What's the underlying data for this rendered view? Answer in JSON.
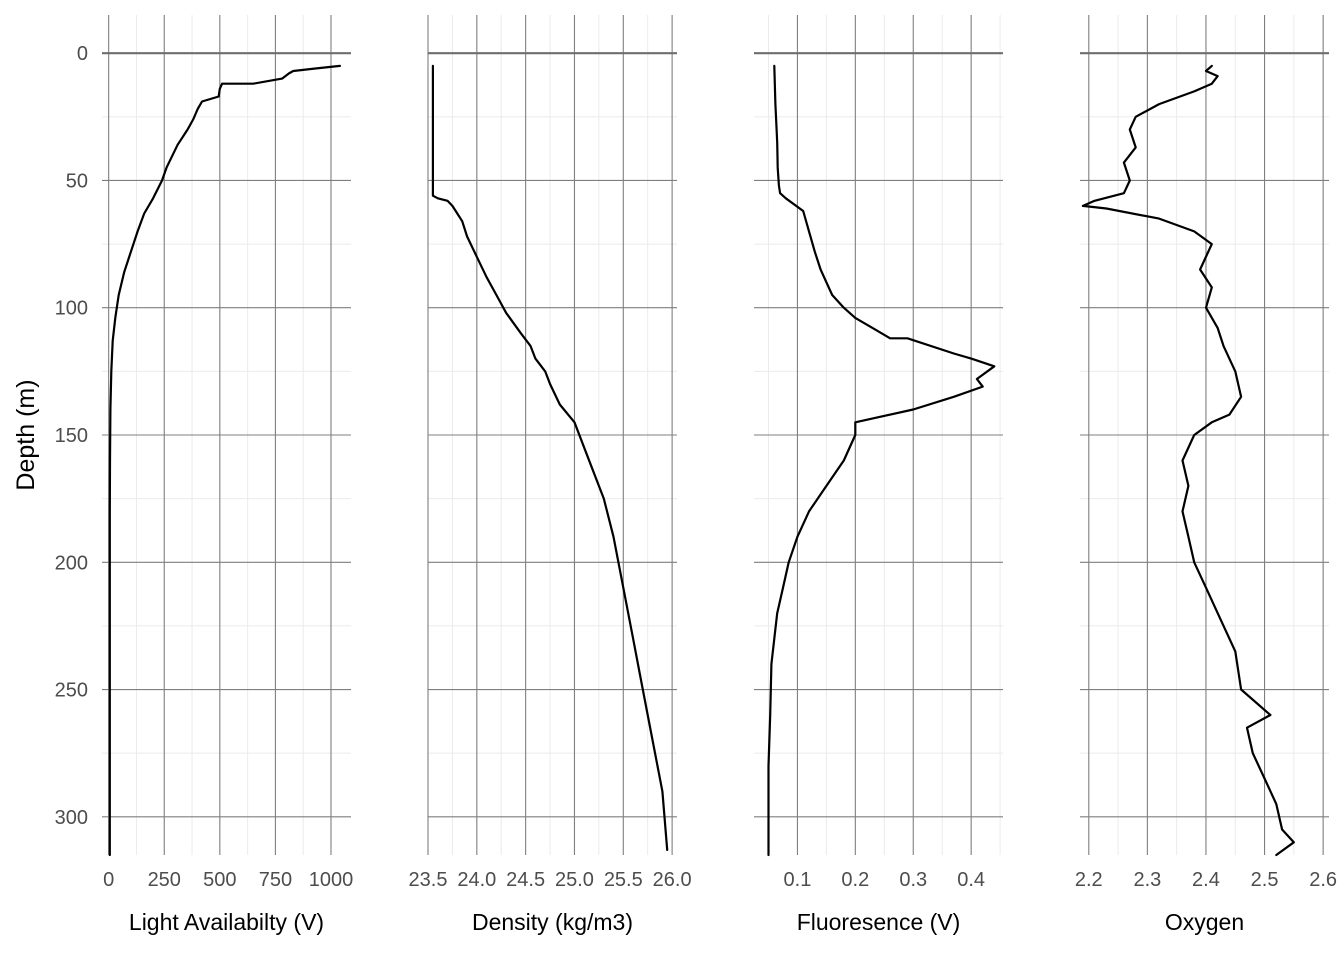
{
  "chart_data": {
    "type": "line",
    "layout": "four vertical profile panels sharing the depth axis",
    "shared_y": {
      "label": "Depth (m)",
      "ticks": [
        0,
        50,
        100,
        150,
        200,
        250,
        300
      ],
      "range": [
        -15,
        315
      ],
      "direction": "increasing downward",
      "reference_line": 0
    },
    "grid": true,
    "panels": [
      {
        "xlabel": "Light Availabilty (V)",
        "xlim": [
          -30,
          1090
        ],
        "xticks": [
          0,
          250,
          500,
          750,
          1000
        ],
        "xtick_labels": [
          "0",
          "250",
          "500",
          "750",
          "1000"
        ],
        "series": {
          "x": [
            1040,
            930,
            830,
            810,
            780,
            650,
            510,
            500,
            495,
            420,
            400,
            380,
            355,
            310,
            260,
            240,
            200,
            160,
            130,
            100,
            70,
            45,
            30,
            18,
            12,
            8,
            6,
            5,
            5,
            5,
            5,
            5,
            5,
            5
          ],
          "y": [
            5,
            6,
            7,
            8,
            10,
            12,
            12,
            14,
            17,
            19,
            22,
            26,
            30,
            36,
            45,
            50,
            57,
            63,
            70,
            78,
            86,
            95,
            104,
            113,
            125,
            140,
            160,
            180,
            200,
            230,
            260,
            280,
            300,
            315
          ]
        }
      },
      {
        "xlabel": "Density (kg/m3)",
        "xlim": [
          23.5,
          26.05
        ],
        "xticks": [
          23.5,
          24.0,
          24.5,
          25.0,
          25.5,
          26.0
        ],
        "xtick_labels": [
          "23.5",
          "24.0",
          "24.5",
          "25.0",
          "25.5",
          "26.0"
        ],
        "series": {
          "x": [
            23.55,
            23.55,
            23.55,
            23.55,
            23.6,
            23.7,
            23.75,
            23.8,
            23.85,
            23.9,
            24.0,
            24.1,
            24.2,
            24.3,
            24.45,
            24.55,
            24.6,
            24.7,
            24.75,
            24.85,
            25.0,
            25.1,
            25.2,
            25.3,
            25.4,
            25.5,
            25.6,
            25.7,
            25.8,
            25.9,
            25.95
          ],
          "y": [
            5,
            20,
            40,
            56,
            57,
            58,
            60,
            63,
            66,
            72,
            80,
            88,
            95,
            102,
            110,
            115,
            120,
            125,
            130,
            138,
            145,
            155,
            165,
            175,
            190,
            210,
            230,
            250,
            270,
            290,
            313
          ]
        }
      },
      {
        "xlabel": "Fluoresence (V)",
        "xlim": [
          0.025,
          0.455
        ],
        "xticks": [
          0.1,
          0.2,
          0.3,
          0.4
        ],
        "xtick_labels": [
          "0.1",
          "0.2",
          "0.3",
          "0.4"
        ],
        "series": {
          "x": [
            0.06,
            0.062,
            0.065,
            0.066,
            0.068,
            0.07,
            0.08,
            0.11,
            0.12,
            0.13,
            0.14,
            0.15,
            0.16,
            0.18,
            0.2,
            0.23,
            0.26,
            0.28,
            0.29,
            0.37,
            0.4,
            0.44,
            0.41,
            0.42,
            0.37,
            0.3,
            0.2,
            0.2,
            0.18,
            0.15,
            0.12,
            0.1,
            0.085,
            0.075,
            0.065,
            0.06,
            0.055,
            0.053,
            0.05,
            0.05
          ],
          "y": [
            5,
            20,
            35,
            45,
            52,
            55,
            57,
            62,
            70,
            78,
            85,
            90,
            95,
            100,
            104,
            108,
            112,
            112,
            112,
            118,
            120,
            123,
            128,
            131,
            135,
            140,
            145,
            150,
            160,
            170,
            180,
            190,
            200,
            210,
            220,
            230,
            240,
            260,
            280,
            315
          ]
        }
      },
      {
        "xlabel": "Oxygen",
        "xlim": [
          2.185,
          2.61
        ],
        "xticks": [
          2.2,
          2.3,
          2.4,
          2.5,
          2.6
        ],
        "xtick_labels": [
          "2.2",
          "2.3",
          "2.4",
          "2.5",
          "2.6"
        ],
        "series": {
          "x": [
            2.41,
            2.4,
            2.42,
            2.41,
            2.38,
            2.32,
            2.28,
            2.27,
            2.28,
            2.26,
            2.27,
            2.26,
            2.21,
            2.19,
            2.23,
            2.32,
            2.38,
            2.41,
            2.39,
            2.41,
            2.4,
            2.42,
            2.43,
            2.45,
            2.46,
            2.44,
            2.41,
            2.38,
            2.36,
            2.37,
            2.36,
            2.37,
            2.38,
            2.4,
            2.42,
            2.45,
            2.46,
            2.51,
            2.47,
            2.48,
            2.5,
            2.52,
            2.53,
            2.55,
            2.52
          ],
          "y": [
            5,
            7,
            9,
            12,
            15,
            20,
            25,
            30,
            37,
            43,
            50,
            55,
            58,
            60,
            61,
            65,
            70,
            75,
            85,
            92,
            100,
            108,
            115,
            125,
            135,
            142,
            145,
            150,
            160,
            170,
            180,
            190,
            200,
            210,
            220,
            235,
            250,
            260,
            265,
            275,
            285,
            295,
            305,
            310,
            315
          ]
        }
      }
    ]
  }
}
